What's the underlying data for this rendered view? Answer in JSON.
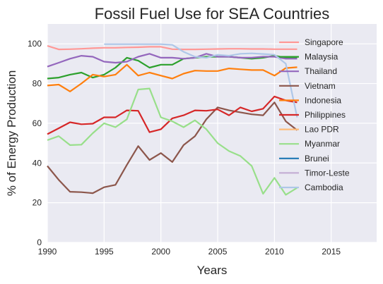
{
  "chart_data": {
    "type": "line",
    "title": "Fossil Fuel Use for SEA Countries",
    "xlabel": "Years",
    "ylabel": "% of Energy Production",
    "xlim": [
      1990,
      2019
    ],
    "ylim": [
      0,
      110
    ],
    "xticks": [
      1990,
      1995,
      2000,
      2005,
      2010,
      2015
    ],
    "yticks": [
      0,
      20,
      40,
      60,
      80,
      100
    ],
    "grid": true,
    "legend_position": "top-right",
    "series": [
      {
        "name": "Singapore",
        "color": "#ff9896",
        "x": [
          1990,
          1991,
          1992,
          1993,
          1994,
          1995,
          1996,
          1997,
          1998,
          1999,
          2000,
          2001,
          2002,
          2003,
          2004,
          2005,
          2006,
          2007,
          2008,
          2009,
          2010,
          2011,
          2012
        ],
        "y": [
          99,
          97.2,
          97.3,
          97.5,
          97.8,
          98,
          98,
          98.2,
          98.3,
          98.5,
          98.5,
          97.3,
          97.2,
          97.2,
          97.3,
          97.4,
          97.5,
          97.5,
          97.4,
          97.4,
          97.3,
          97.3,
          97.3
        ]
      },
      {
        "name": "Malaysia",
        "color": "#2ca02c",
        "x": [
          1990,
          1991,
          1992,
          1993,
          1994,
          1995,
          1996,
          1997,
          1998,
          1999,
          2000,
          2001,
          2002,
          2003,
          2004,
          2005,
          2006,
          2007,
          2008,
          2009,
          2010,
          2011,
          2012
        ],
        "y": [
          82.5,
          83,
          84.5,
          85.5,
          83,
          84.5,
          88,
          93,
          91.5,
          88,
          89.5,
          89.5,
          92.5,
          93,
          93.5,
          93.5,
          93.5,
          93,
          92.5,
          93,
          94,
          93,
          93
        ]
      },
      {
        "name": "Thailand",
        "color": "#9467bd",
        "x": [
          1990,
          1991,
          1992,
          1993,
          1994,
          1995,
          1996,
          1997,
          1998,
          1999,
          2000,
          2001,
          2002,
          2003,
          2004,
          2005,
          2006,
          2007,
          2008,
          2009,
          2010,
          2011,
          2012
        ],
        "y": [
          88.5,
          90.5,
          92.5,
          94,
          93.5,
          91,
          90.5,
          91,
          93.5,
          95,
          93,
          93,
          92.5,
          93,
          95,
          93.5,
          93.5,
          93,
          93,
          93.5,
          93.5,
          92.5,
          92.5
        ]
      },
      {
        "name": "Vietnam",
        "color": "#8c564b",
        "x": [
          1990,
          1991,
          1992,
          1993,
          1994,
          1995,
          1996,
          1997,
          1998,
          1999,
          2000,
          2001,
          2002,
          2003,
          2004,
          2005,
          2006,
          2007,
          2008,
          2009,
          2010,
          2011,
          2012
        ],
        "y": [
          38.5,
          31.5,
          25.5,
          25.3,
          24.8,
          27.8,
          29,
          39,
          48.5,
          41.5,
          45,
          40.5,
          49,
          53.5,
          62,
          68,
          66.5,
          65.5,
          64.5,
          64,
          70.5,
          61,
          56.5
        ]
      },
      {
        "name": "Indonesia",
        "color": "#ff7f0e",
        "x": [
          1990,
          1991,
          1992,
          1993,
          1994,
          1995,
          1996,
          1997,
          1998,
          1999,
          2000,
          2001,
          2002,
          2003,
          2004,
          2005,
          2006,
          2007,
          2008,
          2009,
          2010,
          2011,
          2012
        ],
        "y": [
          79,
          79.5,
          76,
          80,
          84.5,
          83.5,
          84.5,
          89.5,
          84,
          85.5,
          84,
          82.5,
          85,
          86.5,
          86.3,
          86.3,
          87.6,
          87.2,
          86.8,
          86.8,
          84,
          87.8,
          88.2
        ]
      },
      {
        "name": "Philippines",
        "color": "#d62728",
        "x": [
          1990,
          1991,
          1992,
          1993,
          1994,
          1995,
          1996,
          1997,
          1998,
          1999,
          2000,
          2001,
          2002,
          2003,
          2004,
          2005,
          2006,
          2007,
          2008,
          2009,
          2010,
          2011,
          2012
        ],
        "y": [
          54.5,
          57.5,
          60.5,
          59.5,
          59.8,
          63,
          63,
          66.5,
          66.3,
          55.5,
          57,
          62.5,
          64,
          66.5,
          66.3,
          67,
          64,
          68,
          66,
          67.3,
          73.5,
          71.5,
          70.5
        ]
      },
      {
        "name": "Lao PDR",
        "color": "#ffbb78",
        "x": [],
        "y": []
      },
      {
        "name": "Myanmar",
        "color": "#98df8a",
        "x": [
          1990,
          1991,
          1992,
          1993,
          1994,
          1995,
          1996,
          1997,
          1998,
          1999,
          2000,
          2001,
          2002,
          2003,
          2004,
          2005,
          2006,
          2007,
          2008,
          2009,
          2010,
          2011,
          2012
        ],
        "y": [
          51.5,
          53.5,
          49,
          49.2,
          55,
          60,
          58,
          62,
          77,
          77.5,
          63,
          61,
          58,
          61.5,
          57,
          50,
          46,
          43.5,
          38.5,
          24.5,
          32.5,
          24,
          27.5
        ]
      },
      {
        "name": "Brunei",
        "color": "#1f77b4",
        "x": [],
        "y": []
      },
      {
        "name": "Timor-Leste",
        "color": "#c5b0d5",
        "x": [],
        "y": []
      },
      {
        "name": "Cambodia",
        "color": "#aec7e8",
        "x": [
          1995,
          1996,
          1997,
          1998,
          1999,
          2000,
          2001,
          2002,
          2003,
          2004,
          2005,
          2006,
          2007,
          2008,
          2009,
          2010,
          2011,
          2012
        ],
        "y": [
          99.8,
          99.8,
          99.8,
          99.8,
          99.8,
          99.8,
          99.5,
          96,
          93.5,
          93,
          94.5,
          94,
          95,
          95.2,
          94.9,
          94.5,
          90,
          63
        ]
      }
    ]
  }
}
